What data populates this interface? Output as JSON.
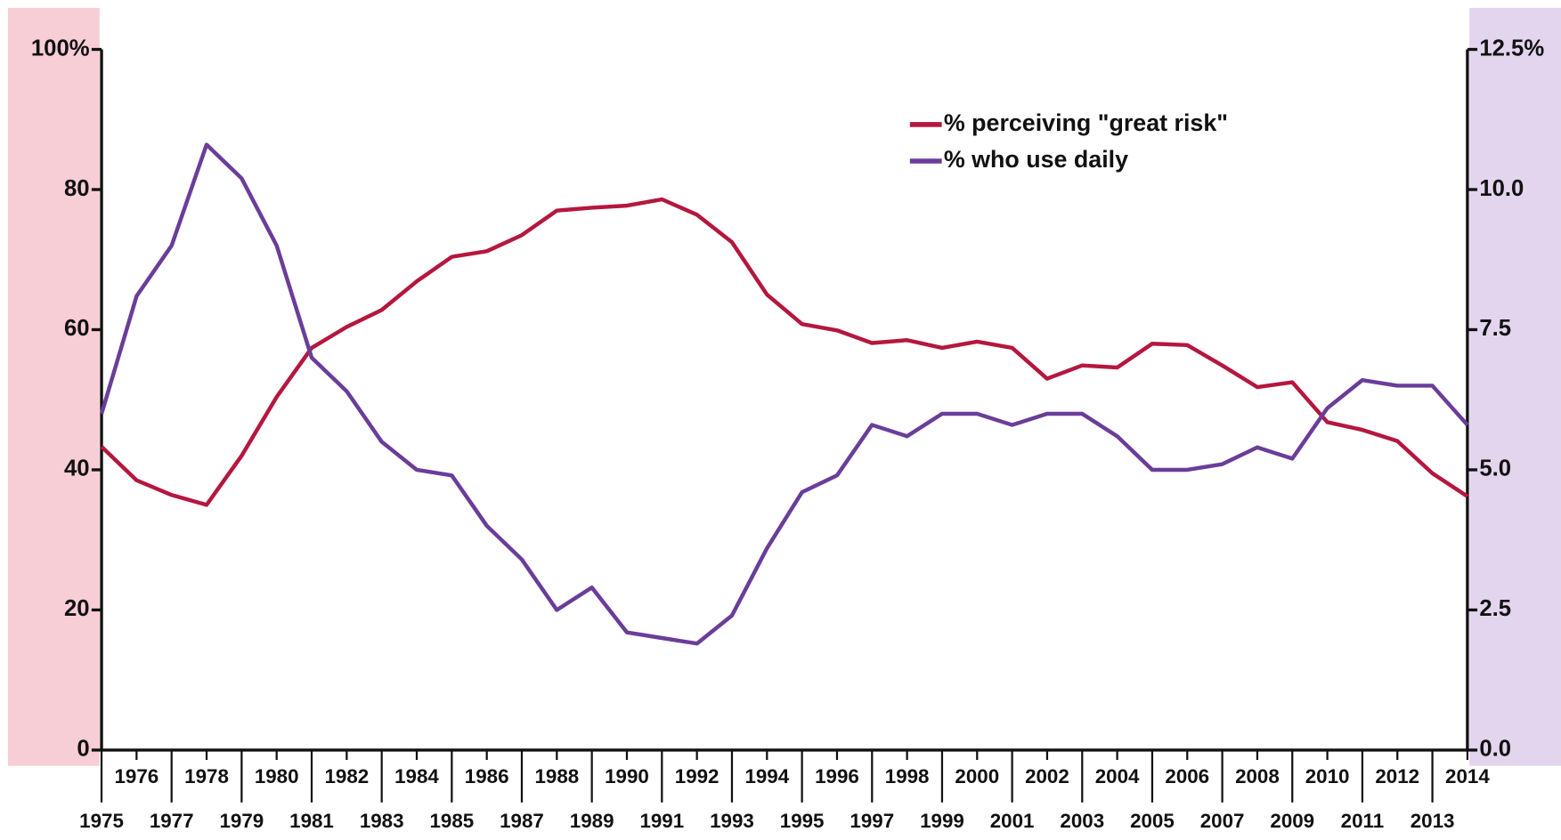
{
  "chart_data": {
    "type": "line",
    "categories": [
      "1975",
      "1976",
      "1977",
      "1978",
      "1979",
      "1980",
      "1981",
      "1982",
      "1983",
      "1984",
      "1985",
      "1986",
      "1987",
      "1988",
      "1989",
      "1990",
      "1991",
      "1992",
      "1993",
      "1994",
      "1995",
      "1996",
      "1997",
      "1998",
      "1999",
      "2000",
      "2001",
      "2002",
      "2003",
      "2004",
      "2005",
      "2006",
      "2007",
      "2008",
      "2009",
      "2010",
      "2011",
      "2012",
      "2013",
      "2014"
    ],
    "series": [
      {
        "name": "% perceiving \"great risk\"",
        "color": "#b5173e",
        "values": [
          43.3,
          38.5,
          36.4,
          35.0,
          42.0,
          50.4,
          57.4,
          60.4,
          62.8,
          66.9,
          70.4,
          71.2,
          73.5,
          77.0,
          77.4,
          77.7,
          78.6,
          76.4,
          72.5,
          65.0,
          60.8,
          59.9,
          58.1,
          58.5,
          57.4,
          58.3,
          57.4,
          53.0,
          54.9,
          54.6,
          58.0,
          57.8,
          54.9,
          51.8,
          52.5,
          46.8,
          45.7,
          44.1,
          39.5,
          36.2
        ]
      },
      {
        "name": "% who use daily",
        "color": "#6a3d9a",
        "axis": "y2",
        "values": [
          6.0,
          8.1,
          9.0,
          10.8,
          10.2,
          9.0,
          7.0,
          6.4,
          5.5,
          5.0,
          4.9,
          4.0,
          3.4,
          2.5,
          2.9,
          2.1,
          2.0,
          1.9,
          2.4,
          3.6,
          4.6,
          4.9,
          5.8,
          5.6,
          6.0,
          6.0,
          5.8,
          6.0,
          6.0,
          5.6,
          5.0,
          5.0,
          5.1,
          5.4,
          5.2,
          6.1,
          6.6,
          6.5,
          6.5,
          5.8
        ]
      }
    ],
    "ylim": [
      0,
      100
    ],
    "yticks": [
      0,
      20,
      40,
      60,
      80,
      {
        "value": 100,
        "label": "100%"
      }
    ],
    "y2lim": [
      0,
      12.5
    ],
    "y2ticks": [
      {
        "value": 0,
        "label": "0.0"
      },
      2.5,
      {
        "value": 5,
        "label": "5.0"
      },
      7.5,
      {
        "value": 10,
        "label": "10.0"
      },
      {
        "value": 12.5,
        "label": "12.5%"
      }
    ],
    "legend": "upper right"
  }
}
